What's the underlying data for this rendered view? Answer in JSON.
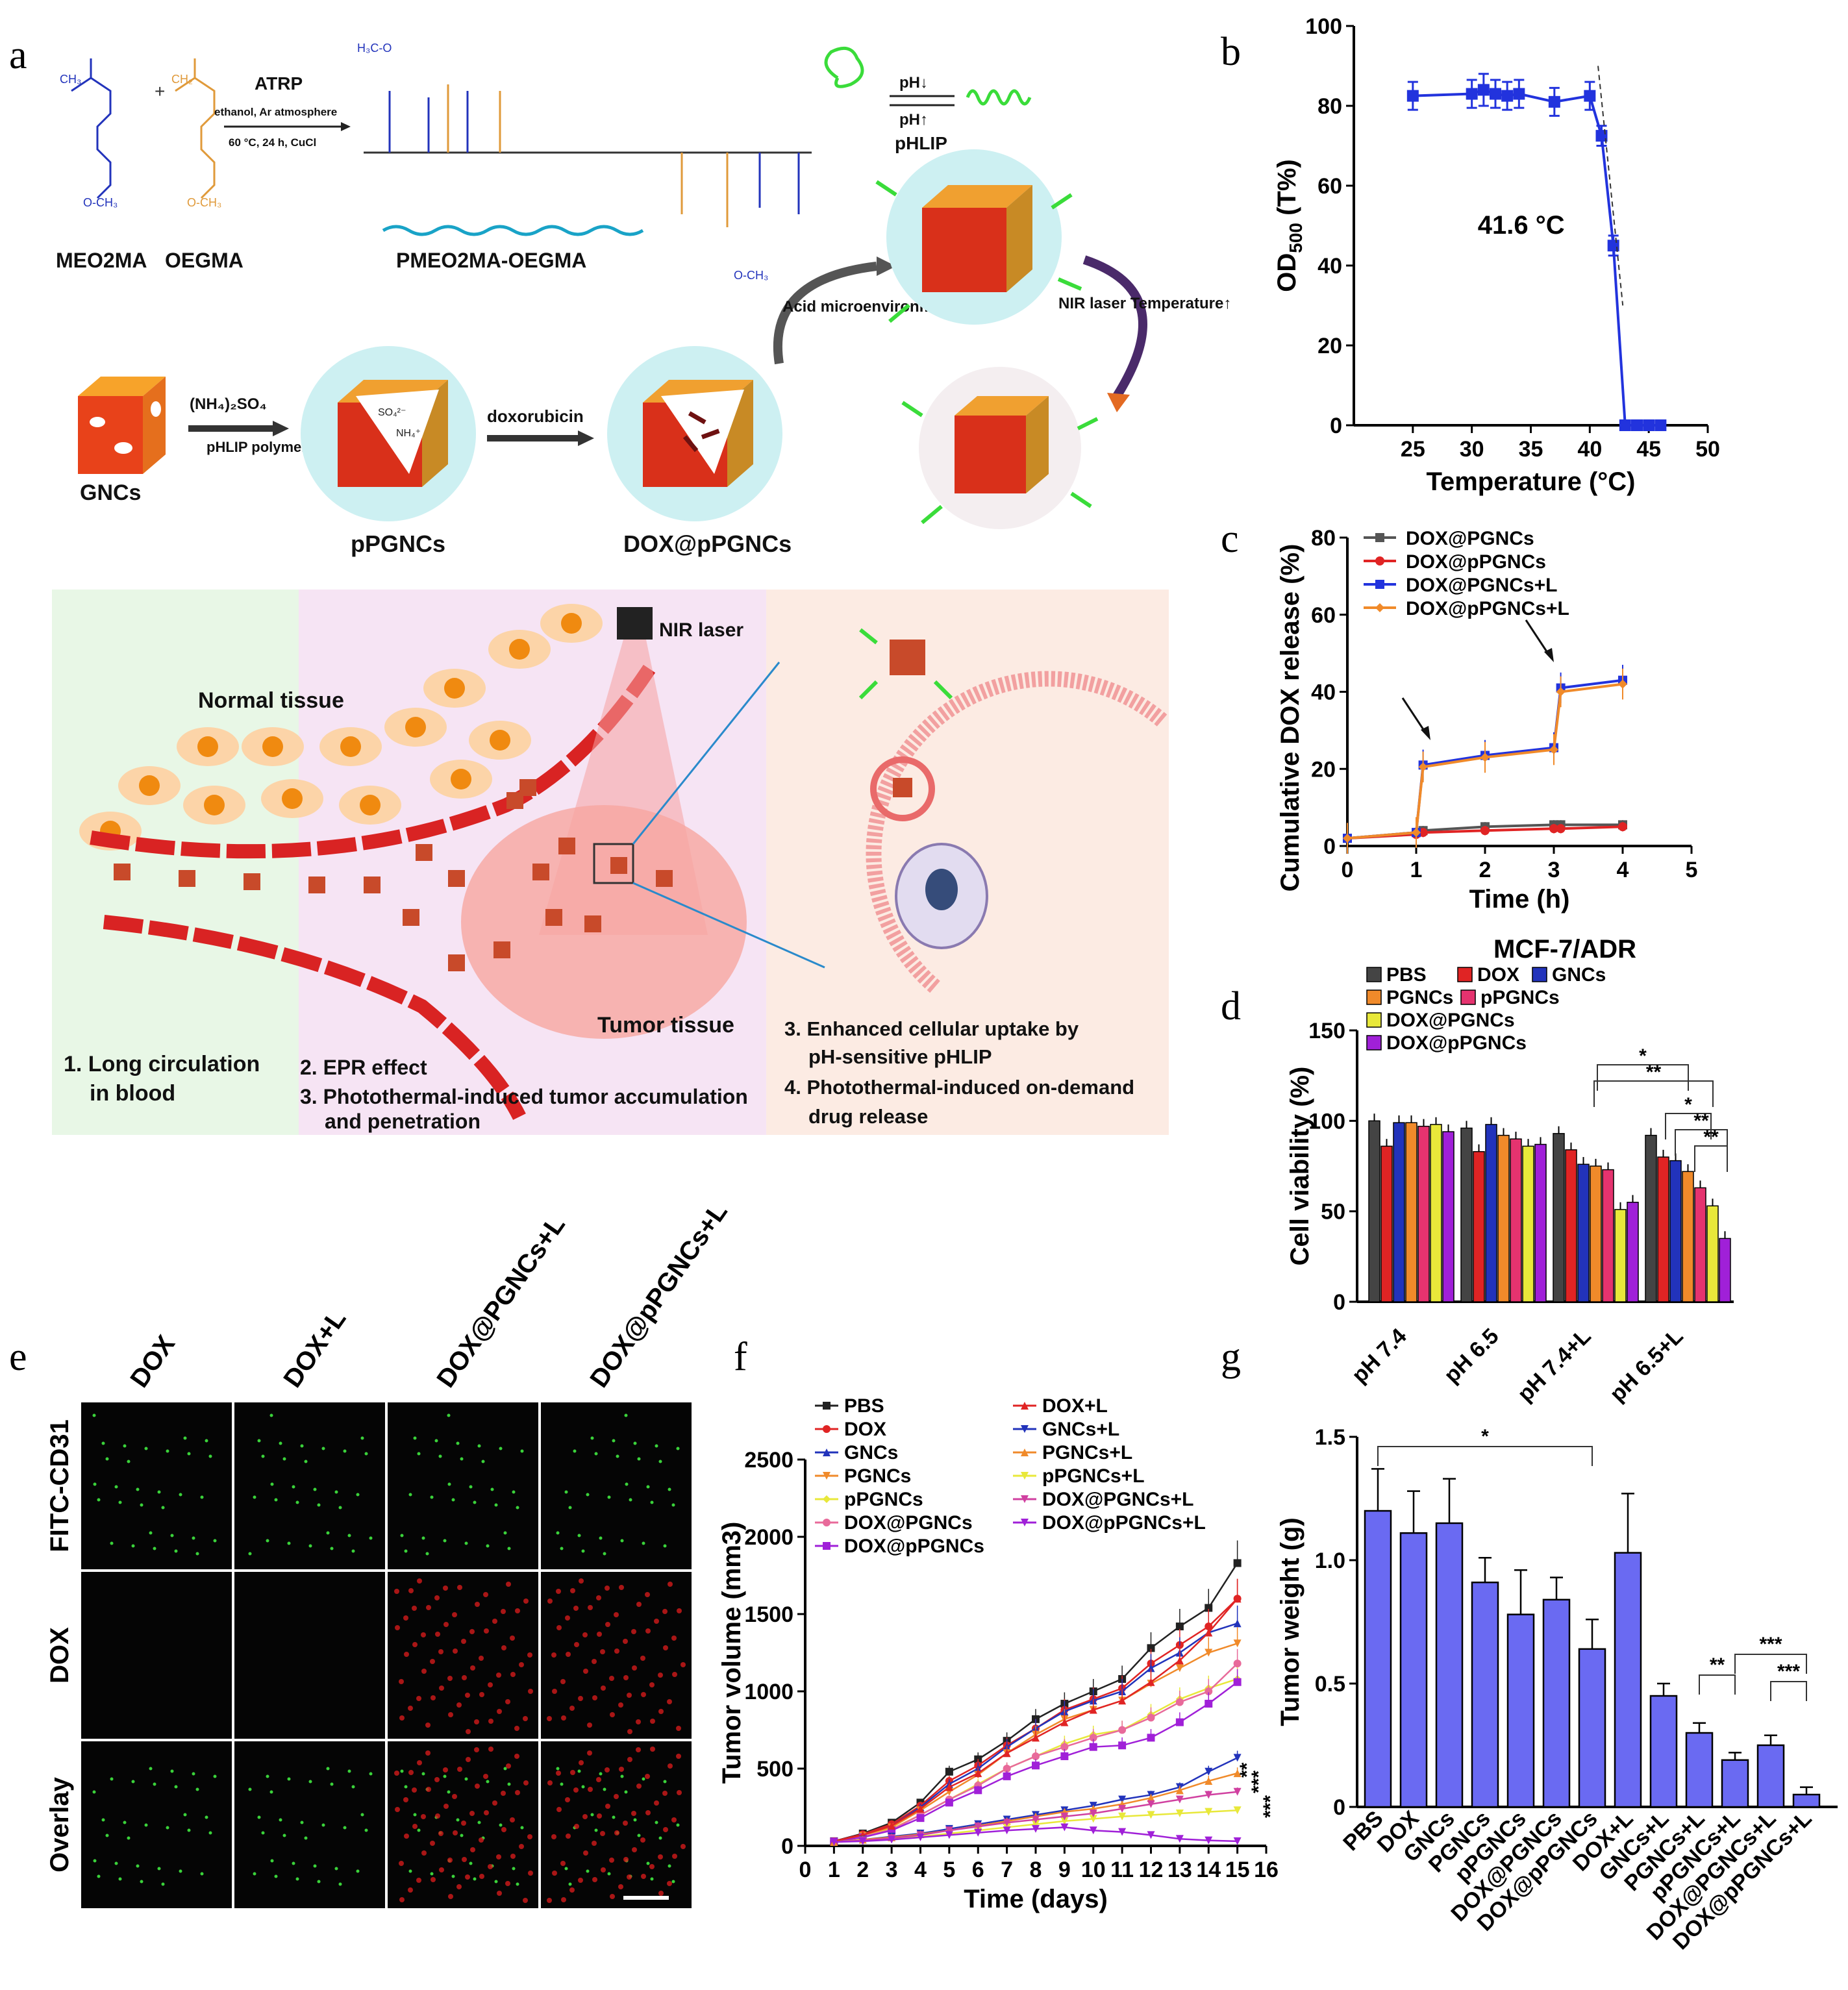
{
  "panels": {
    "a": "a",
    "b": "b",
    "c": "c",
    "d": "d",
    "e": "e",
    "f": "f",
    "g": "g"
  },
  "colors": {
    "blue": "#2233dd",
    "red": "#e02424",
    "orange": "#f08a2a",
    "gray": "#555555",
    "yellow": "#e8e83a",
    "pink": "#e5336f",
    "purple": "#a020d8",
    "magenta": "#d040a0",
    "bar_blue": "#6a6af2",
    "green_bg": "#e8f7e6",
    "pink_bg": "#f6e4f4",
    "peach_bg": "#fcebe3"
  },
  "schematic": {
    "reaction": {
      "atrp": "ATRP",
      "cond1": "ethanol, Ar atmosphere",
      "cond2": "60 °C, 24 h, CuCl",
      "mon1": "MEO2MA",
      "mon2": "OEGMA",
      "polymer": "PMEO2MA-OEGMA",
      "och3": "O-CH₃",
      "h3co": "H₃C-O",
      "ch2": "CH₂",
      "ch3": "CH₃"
    },
    "phlip": {
      "ph_down": "pH↓",
      "ph_up": "pH↑",
      "label": "pHLIP"
    },
    "steps": {
      "gncs": "GNCs",
      "reagent": "(NH₄)₂SO₄",
      "phlip_polymer": "pHLIP polymer",
      "ppgncs": "pPGNCs",
      "dox": "doxorubicin",
      "doxppgncs": "DOX@pPGNCs",
      "acid": "Acid microenvironment pH↓",
      "nir": "NIR laser Temperature↑",
      "so4": "SO₄²⁻",
      "nh4": "NH₄⁺"
    },
    "tissue": {
      "nir_laser": "NIR laser",
      "normal": "Normal tissue",
      "tumor": "Tumor tissue",
      "c1": "1. Long circulation",
      "c1b": "in blood",
      "c2": "2. EPR effect",
      "c3": "3. Photothermal-induced tumor accumulation",
      "c3b": "and penetration",
      "c4": "3. Enhanced cellular uptake by",
      "c4b": "pH-sensitive pHLIP",
      "c5": "4. Photothermal-induced on-demand",
      "c5b": "drug release"
    }
  },
  "chart_data": [
    {
      "panel": "b",
      "type": "line",
      "xlabel": "Temperature (°C)",
      "ylabel": "OD500 (T%)",
      "ylabel_main": "OD",
      "ylabel_sub": "500",
      "ylabel_tail": " (T%)",
      "xlim": [
        20,
        50
      ],
      "ylim": [
        0,
        100
      ],
      "xticks": [
        25,
        30,
        35,
        40,
        45,
        50
      ],
      "yticks": [
        0,
        20,
        40,
        60,
        80,
        100
      ],
      "x": [
        25,
        30,
        31,
        32,
        33,
        34,
        37,
        40,
        41,
        42,
        43,
        44,
        45,
        46
      ],
      "y": [
        82.5,
        83,
        84,
        83,
        82.5,
        83,
        81,
        82.5,
        72.5,
        45,
        0,
        0,
        0,
        0
      ],
      "err": [
        3.5,
        3.5,
        4,
        3.5,
        3.5,
        3.5,
        3.5,
        3.5,
        2.5,
        2.5,
        0,
        0,
        0,
        0
      ],
      "annotation": "41.6 °C"
    },
    {
      "panel": "c",
      "type": "line",
      "xlabel": "Time (h)",
      "ylabel": "Cumulative DOX release (%)",
      "xlim": [
        0,
        5
      ],
      "ylim": [
        0,
        80
      ],
      "xticks": [
        0,
        1,
        2,
        3,
        4,
        5
      ],
      "yticks": [
        0,
        20,
        40,
        60,
        80
      ],
      "series": [
        {
          "name": "DOX@PGNCs",
          "x": [
            0,
            1,
            1.1,
            2,
            3,
            3.1,
            4
          ],
          "values": [
            2,
            3.5,
            4,
            5,
            5.5,
            5.5,
            5.5
          ]
        },
        {
          "name": "DOX@pPGNCs",
          "x": [
            0,
            1,
            1.1,
            2,
            3,
            3.1,
            4
          ],
          "values": [
            2,
            3,
            3.5,
            4,
            4.5,
            4.5,
            5
          ]
        },
        {
          "name": "DOX@PGNCs+L",
          "x": [
            0,
            1,
            1.1,
            2,
            3,
            3.1,
            4
          ],
          "values": [
            2,
            3.5,
            21,
            23.5,
            25.5,
            41,
            43
          ]
        },
        {
          "name": "DOX@pPGNCs+L",
          "x": [
            0,
            1,
            1.1,
            2,
            3,
            3.1,
            4
          ],
          "values": [
            2,
            3.5,
            20.5,
            23,
            25,
            40,
            42
          ]
        }
      ]
    },
    {
      "panel": "d",
      "type": "bar",
      "title": "MCF-7/ADR",
      "ylabel": "Cell viability (%)",
      "ylim": [
        0,
        150
      ],
      "yticks": [
        0,
        50,
        100,
        150
      ],
      "categories": [
        "pH 7.4",
        "pH 6.5",
        "pH 7.4+L",
        "pH 6.5+L"
      ],
      "series": [
        {
          "name": "PBS",
          "values": [
            100,
            96,
            93,
            92
          ]
        },
        {
          "name": "DOX",
          "values": [
            86,
            83,
            84,
            80
          ]
        },
        {
          "name": "GNCs",
          "values": [
            99,
            98,
            76,
            78
          ]
        },
        {
          "name": "PGNCs",
          "values": [
            99,
            92,
            75,
            72
          ]
        },
        {
          "name": "pPGNCs",
          "values": [
            97,
            90,
            73,
            63
          ]
        },
        {
          "name": "DOX@PGNCs",
          "values": [
            98,
            86,
            51,
            53
          ]
        },
        {
          "name": "DOX@pPGNCs",
          "values": [
            94,
            87,
            55,
            35
          ]
        }
      ],
      "sig": [
        "*",
        "**",
        "*",
        "**",
        "**"
      ]
    },
    {
      "panel": "f",
      "type": "line",
      "xlabel": "Time (days)",
      "ylabel": "Tumor volume (mm3)",
      "ylim": [
        0,
        2500
      ],
      "xlim": [
        0,
        16
      ],
      "yticks": [
        0,
        500,
        1000,
        1500,
        2000,
        2500
      ],
      "xticks": [
        0,
        1,
        2,
        3,
        4,
        5,
        6,
        7,
        8,
        9,
        10,
        11,
        12,
        13,
        14,
        15,
        16
      ],
      "x": [
        1,
        2,
        3,
        4,
        5,
        6,
        7,
        8,
        9,
        10,
        11,
        12,
        13,
        14,
        15
      ],
      "series": [
        {
          "name": "PBS",
          "values": [
            30,
            80,
            150,
            280,
            480,
            560,
            680,
            820,
            920,
            1000,
            1080,
            1280,
            1420,
            1540,
            1830
          ]
        },
        {
          "name": "DOX",
          "values": [
            30,
            75,
            140,
            260,
            420,
            520,
            650,
            760,
            880,
            950,
            1020,
            1180,
            1300,
            1420,
            1600
          ]
        },
        {
          "name": "GNCs",
          "values": [
            30,
            70,
            130,
            250,
            400,
            500,
            640,
            760,
            870,
            940,
            1000,
            1150,
            1250,
            1380,
            1440
          ]
        },
        {
          "name": "PGNCs",
          "values": [
            28,
            65,
            120,
            230,
            350,
            460,
            600,
            720,
            820,
            880,
            940,
            1050,
            1150,
            1250,
            1310
          ]
        },
        {
          "name": "pPGNCs",
          "values": [
            28,
            60,
            110,
            200,
            300,
            400,
            500,
            580,
            660,
            720,
            750,
            850,
            950,
            1020,
            1080
          ]
        },
        {
          "name": "DOX@PGNCs",
          "values": [
            28,
            60,
            105,
            200,
            300,
            390,
            500,
            580,
            640,
            700,
            750,
            830,
            930,
            1000,
            1180
          ]
        },
        {
          "name": "DOX@pPGNCs",
          "values": [
            28,
            55,
            100,
            180,
            280,
            360,
            450,
            520,
            580,
            640,
            650,
            700,
            800,
            920,
            1060
          ]
        },
        {
          "name": "DOX+L",
          "values": [
            30,
            70,
            130,
            240,
            380,
            470,
            600,
            700,
            800,
            880,
            940,
            1060,
            1200,
            1380,
            1600
          ]
        },
        {
          "name": "GNCs+L",
          "values": [
            25,
            40,
            60,
            80,
            110,
            140,
            170,
            200,
            230,
            260,
            300,
            330,
            380,
            480,
            570
          ]
        },
        {
          "name": "PGNCs+L",
          "values": [
            25,
            40,
            55,
            75,
            100,
            130,
            160,
            190,
            220,
            240,
            270,
            310,
            360,
            420,
            470
          ]
        },
        {
          "name": "pPGNCs+L",
          "values": [
            25,
            35,
            45,
            60,
            80,
            100,
            120,
            140,
            160,
            175,
            190,
            200,
            210,
            220,
            230
          ]
        },
        {
          "name": "DOX@PGNCs+L",
          "values": [
            25,
            35,
            50,
            70,
            100,
            125,
            150,
            170,
            190,
            210,
            240,
            270,
            300,
            330,
            350
          ]
        },
        {
          "name": "DOX@pPGNCs+L",
          "values": [
            25,
            30,
            40,
            55,
            70,
            85,
            100,
            110,
            120,
            100,
            90,
            70,
            45,
            35,
            30
          ]
        }
      ],
      "sig": [
        "**",
        "***",
        "***"
      ]
    },
    {
      "panel": "g",
      "type": "bar",
      "ylabel": "Tumor weight (g)",
      "ylim": [
        0,
        1.5
      ],
      "yticks": [
        "0",
        "0.5",
        "1.0",
        "1.5"
      ],
      "categories": [
        "PBS",
        "DOX",
        "GNCs",
        "PGNCs",
        "pPGNCs",
        "DOX@PGNCs",
        "DOX@pPGNCs",
        "DOX+L",
        "GNCs+L",
        "PGNCs+L",
        "pPGNCs+L",
        "DOX@PGNCs+L",
        "DOX@pPGNCs+L"
      ],
      "values": [
        1.2,
        1.11,
        1.15,
        0.91,
        0.78,
        0.84,
        0.64,
        1.03,
        0.45,
        0.3,
        0.19,
        0.25,
        0.05
      ],
      "err": [
        0.17,
        0.17,
        0.18,
        0.1,
        0.18,
        0.09,
        0.12,
        0.24,
        0.05,
        0.04,
        0.03,
        0.04,
        0.03
      ],
      "sig": [
        "*",
        "**",
        "***",
        "***"
      ]
    },
    {
      "panel": "e",
      "type": "image_grid",
      "columns": [
        "DOX",
        "DOX+L",
        "DOX@PGNCs+L",
        "DOX@pPGNCs+L"
      ],
      "rows": [
        "FITC-CD31",
        "DOX",
        "Overlay"
      ]
    }
  ]
}
